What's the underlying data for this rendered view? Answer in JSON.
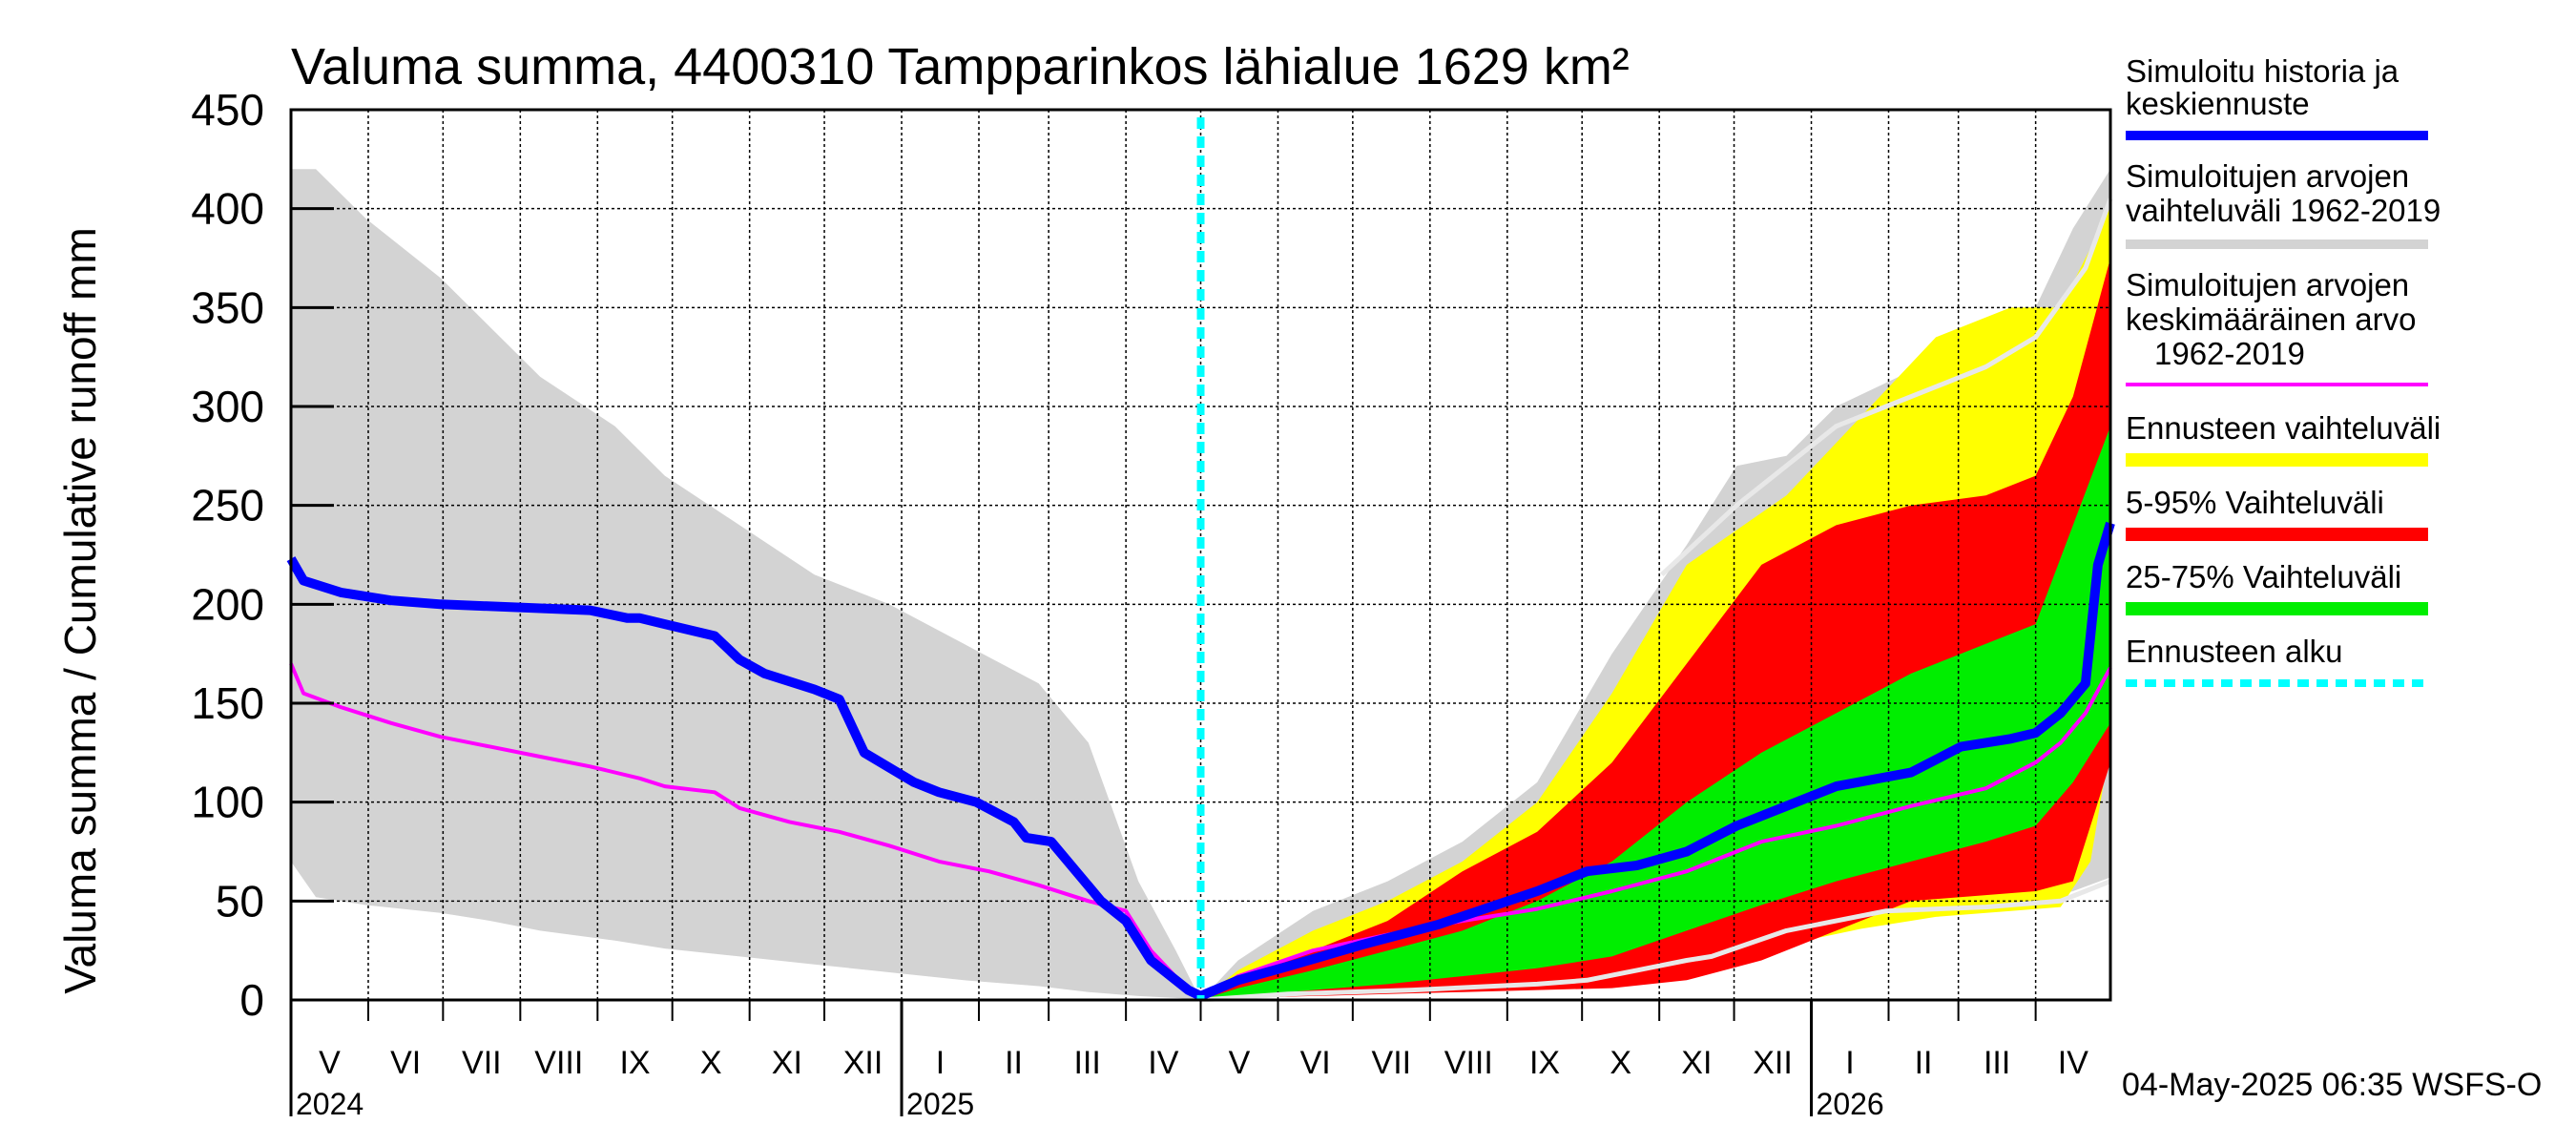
{
  "chart_data": {
    "type": "area",
    "title": "Valuma summa, 4400310 Tampparinkos lähialue 1629 km²",
    "ylabel": "Valuma summa / Cumulative runoff    mm",
    "ylim": [
      0,
      450
    ],
    "yticks": [
      "0",
      "50",
      "100",
      "150",
      "200",
      "250",
      "300",
      "350",
      "400",
      "450"
    ],
    "xlim_days": [
      0,
      730
    ],
    "forecast_start_day": 365,
    "months": [
      {
        "label": "V",
        "start": 0,
        "end": 31
      },
      {
        "label": "VI",
        "start": 31,
        "end": 61
      },
      {
        "label": "VII",
        "start": 61,
        "end": 92
      },
      {
        "label": "VIII",
        "start": 92,
        "end": 123
      },
      {
        "label": "IX",
        "start": 123,
        "end": 153
      },
      {
        "label": "X",
        "start": 153,
        "end": 184
      },
      {
        "label": "XI",
        "start": 184,
        "end": 214
      },
      {
        "label": "XII",
        "start": 214,
        "end": 245
      },
      {
        "label": "I",
        "start": 245,
        "end": 276
      },
      {
        "label": "II",
        "start": 276,
        "end": 304
      },
      {
        "label": "III",
        "start": 304,
        "end": 335
      },
      {
        "label": "IV",
        "start": 335,
        "end": 365
      },
      {
        "label": "V",
        "start": 365,
        "end": 396
      },
      {
        "label": "VI",
        "start": 396,
        "end": 426
      },
      {
        "label": "VII",
        "start": 426,
        "end": 457
      },
      {
        "label": "VIII",
        "start": 457,
        "end": 488
      },
      {
        "label": "IX",
        "start": 488,
        "end": 518
      },
      {
        "label": "X",
        "start": 518,
        "end": 549
      },
      {
        "label": "XI",
        "start": 549,
        "end": 579
      },
      {
        "label": "XII",
        "start": 579,
        "end": 610
      },
      {
        "label": "I",
        "start": 610,
        "end": 641
      },
      {
        "label": "II",
        "start": 641,
        "end": 669
      },
      {
        "label": "III",
        "start": 669,
        "end": 700
      },
      {
        "label": "IV",
        "start": 700,
        "end": 730
      }
    ],
    "years": [
      {
        "label": "2024",
        "day": 0
      },
      {
        "label": "2025",
        "day": 245
      },
      {
        "label": "2026",
        "day": 610
      }
    ],
    "series": [
      {
        "name": "Simuloitujen arvojen vaihteluväli 1962-2019 (history)",
        "kind": "band",
        "color": "#d3d3d3",
        "x": [
          0,
          10,
          30,
          60,
          80,
          100,
          130,
          150,
          180,
          210,
          240,
          270,
          300,
          320,
          340,
          355,
          365
        ],
        "upper": [
          420,
          420,
          395,
          365,
          340,
          315,
          290,
          265,
          240,
          215,
          200,
          180,
          160,
          130,
          60,
          25,
          0
        ],
        "lower": [
          70,
          52,
          48,
          44,
          40,
          35,
          30,
          26,
          22,
          18,
          14,
          10,
          7,
          4,
          2,
          1,
          0
        ]
      },
      {
        "name": "Simuloitujen arvojen vaihteluväli 1962-2019 (forecast)",
        "kind": "band",
        "color": "#d3d3d3",
        "x": [
          365,
          380,
          410,
          440,
          470,
          500,
          530,
          560,
          580,
          600,
          620,
          650,
          680,
          700,
          715,
          730
        ],
        "upper": [
          0,
          20,
          45,
          60,
          80,
          110,
          175,
          230,
          270,
          275,
          300,
          318,
          325,
          350,
          390,
          420
        ],
        "lower": [
          0,
          1,
          3,
          4,
          5,
          6,
          8,
          15,
          25,
          35,
          45,
          47,
          48,
          50,
          55,
          62
        ]
      },
      {
        "name": "Ennusteen vaihteluväli",
        "kind": "band",
        "color": "#ffff00",
        "x": [
          365,
          380,
          410,
          440,
          470,
          500,
          530,
          560,
          600,
          630,
          660,
          690,
          710,
          722,
          730
        ],
        "upper": [
          0,
          15,
          35,
          50,
          70,
          100,
          155,
          220,
          255,
          295,
          335,
          350,
          350,
          380,
          405
        ],
        "lower": [
          0,
          2,
          4,
          5,
          6,
          7,
          10,
          18,
          28,
          36,
          42,
          45,
          47,
          70,
          130
        ]
      },
      {
        "name": "5-95% Vaihteluväli",
        "kind": "band",
        "color": "#ff0000",
        "x": [
          365,
          380,
          410,
          440,
          470,
          500,
          530,
          560,
          590,
          620,
          650,
          680,
          700,
          715,
          730
        ],
        "upper": [
          0,
          10,
          25,
          40,
          65,
          85,
          120,
          170,
          220,
          240,
          250,
          255,
          265,
          305,
          375
        ],
        "lower": [
          0,
          1,
          2,
          3,
          4,
          5,
          6,
          10,
          20,
          35,
          50,
          53,
          55,
          60,
          120
        ]
      },
      {
        "name": "25-75% Vaihteluväli",
        "kind": "band",
        "color": "#00ee00",
        "x": [
          365,
          380,
          410,
          440,
          470,
          500,
          530,
          560,
          590,
          620,
          650,
          680,
          700,
          715,
          730
        ],
        "upper": [
          0,
          6,
          15,
          25,
          35,
          50,
          70,
          100,
          125,
          145,
          165,
          180,
          190,
          240,
          290
        ],
        "lower": [
          0,
          2,
          5,
          8,
          12,
          16,
          22,
          35,
          48,
          60,
          70,
          80,
          88,
          110,
          140
        ]
      },
      {
        "name": "Simuloitu historia ja keskiennuste",
        "kind": "line",
        "color": "#0000ff",
        "x": [
          0,
          5,
          20,
          40,
          60,
          100,
          120,
          135,
          140,
          150,
          170,
          180,
          190,
          210,
          220,
          230,
          250,
          260,
          275,
          290,
          295,
          305,
          315,
          325,
          335,
          345,
          360,
          365,
          380,
          400,
          430,
          460,
          500,
          520,
          540,
          560,
          580,
          600,
          620,
          650,
          670,
          690,
          700,
          710,
          720,
          725,
          730
        ],
        "y": [
          223,
          212,
          206,
          202,
          200,
          198,
          197,
          193,
          193,
          190,
          184,
          172,
          165,
          157,
          152,
          125,
          110,
          105,
          100,
          90,
          82,
          80,
          65,
          50,
          40,
          20,
          5,
          2,
          10,
          17,
          28,
          38,
          55,
          65,
          68,
          75,
          88,
          98,
          108,
          115,
          128,
          132,
          135,
          145,
          160,
          220,
          241
        ]
      },
      {
        "name": "Simuloitujen arvojen keskimääräinen arvo 1962-2019",
        "kind": "line",
        "color": "#ff00ff",
        "x": [
          0,
          5,
          20,
          40,
          60,
          80,
          100,
          120,
          140,
          150,
          170,
          180,
          200,
          220,
          240,
          260,
          280,
          300,
          320,
          335,
          345,
          360,
          365,
          380,
          410,
          440,
          470,
          500,
          530,
          560,
          590,
          620,
          650,
          680,
          700,
          710,
          720,
          730
        ],
        "y": [
          170,
          155,
          148,
          140,
          133,
          128,
          123,
          118,
          112,
          108,
          105,
          97,
          90,
          85,
          78,
          70,
          65,
          58,
          50,
          45,
          25,
          5,
          0,
          12,
          25,
          33,
          40,
          46,
          55,
          65,
          80,
          88,
          98,
          107,
          120,
          130,
          145,
          168
        ]
      },
      {
        "name": "Minimum history (light line)",
        "kind": "line",
        "color": "#e8e8e8",
        "x": [
          365,
          400,
          450,
          500,
          520,
          540,
          560,
          570,
          600,
          640,
          680,
          710,
          730
        ],
        "y": [
          0,
          3,
          5,
          8,
          10,
          15,
          20,
          22,
          35,
          45,
          47,
          50,
          60
        ]
      },
      {
        "name": "Maximum history (light line)",
        "kind": "line",
        "color": "#e8e8e8",
        "x": [
          550,
          580,
          600,
          620,
          640,
          660,
          680,
          700,
          720,
          730
        ],
        "y": [
          215,
          250,
          270,
          290,
          300,
          310,
          320,
          335,
          370,
          405
        ]
      }
    ]
  },
  "legend": [
    {
      "label": "Simuloitu historia ja keskiennuste",
      "color": "#0000ff",
      "style": "solid"
    },
    {
      "label": "Simuloitujen arvojen vaihteluväli 1962-2019",
      "color": "#d3d3d3",
      "style": "solid"
    },
    {
      "label": "Simuloitujen arvojen keskimääräinen arvo 1962-2019",
      "color": "#ff00ff",
      "style": "thin"
    },
    {
      "label": "Ennusteen vaihteluväli",
      "color": "#ffff00",
      "style": "solid"
    },
    {
      "label": "5-95% Vaihteluväli",
      "color": "#ff0000",
      "style": "solid"
    },
    {
      "label": "25-75% Vaihteluväli",
      "color": "#00ee00",
      "style": "solid"
    },
    {
      "label": "Ennusteen alku",
      "color": "#00ffff",
      "style": "dotted"
    }
  ],
  "legend_text": {
    "l1a": "Simuloitu historia ja",
    "l1b": "keskiennuste",
    "l2a": "Simuloitujen arvojen",
    "l2b": "vaihteluväli 1962-2019",
    "l3a": "Simuloitujen arvojen",
    "l3b": "keskimääräinen arvo",
    "l3c": "1962-2019",
    "l4": "Ennusteen vaihteluväli",
    "l5": "5-95% Vaihteluväli",
    "l6": "25-75% Vaihteluväli",
    "l7": "Ennusteen alku"
  },
  "footer": "04-May-2025 06:35 WSFS-O",
  "colors": {
    "grid": "#000000",
    "forecast_line": "#00ffff"
  }
}
